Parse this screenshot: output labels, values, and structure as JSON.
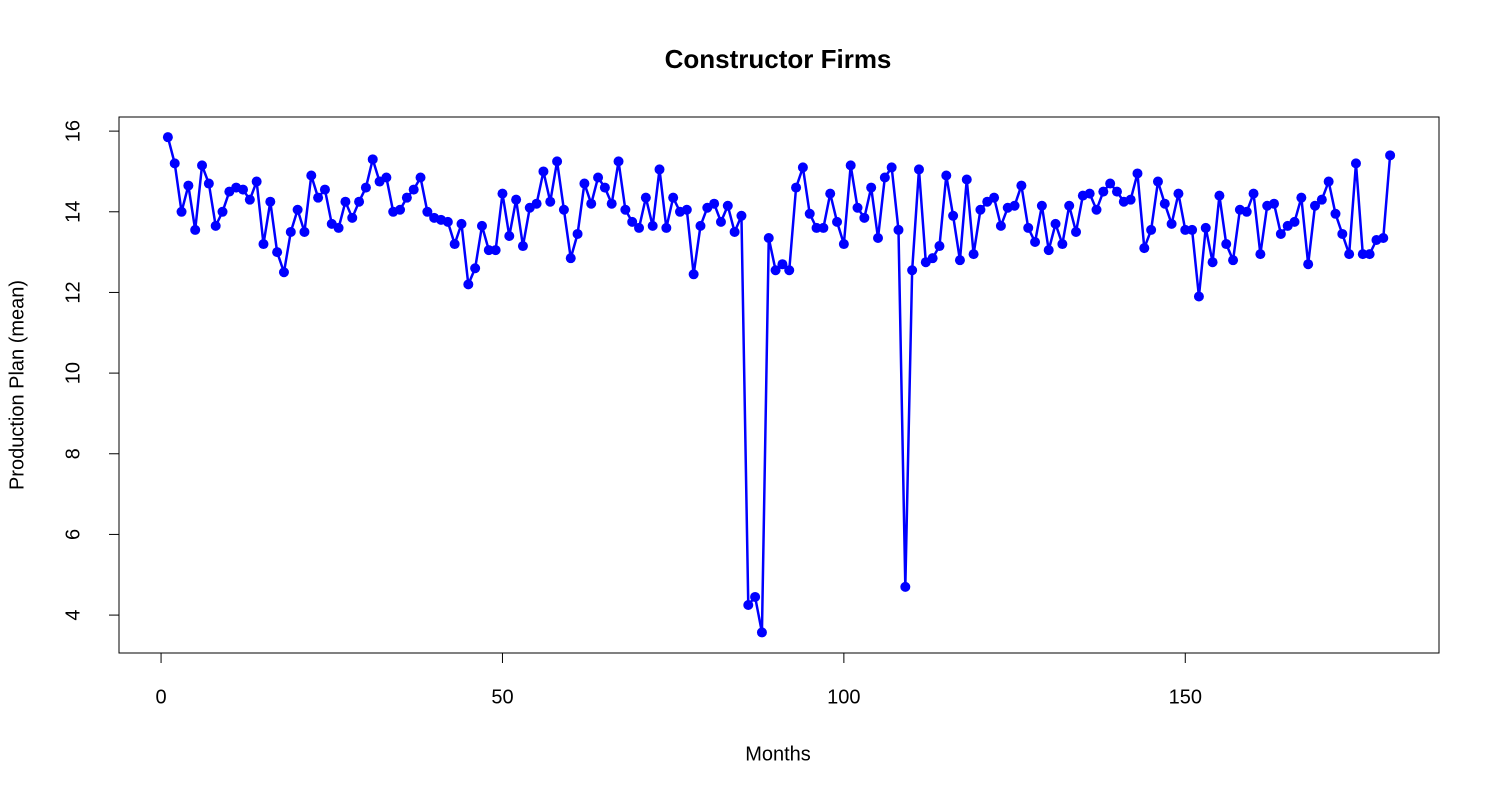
{
  "chart_data": {
    "type": "line",
    "title": "Constructor Firms",
    "x_label": "Months",
    "y_label": "Production Plan (mean)",
    "x": [
      1,
      2,
      3,
      4,
      5,
      6,
      7,
      8,
      9,
      10,
      11,
      12,
      13,
      14,
      15,
      16,
      17,
      18,
      19,
      20,
      21,
      22,
      23,
      24,
      25,
      26,
      27,
      28,
      29,
      30,
      31,
      32,
      33,
      34,
      35,
      36,
      37,
      38,
      39,
      40,
      41,
      42,
      43,
      44,
      45,
      46,
      47,
      48,
      49,
      50,
      51,
      52,
      53,
      54,
      55,
      56,
      57,
      58,
      59,
      60,
      61,
      62,
      63,
      64,
      65,
      66,
      67,
      68,
      69,
      70,
      71,
      72,
      73,
      74,
      75,
      76,
      77,
      78,
      79,
      80,
      81,
      82,
      83,
      84,
      85,
      86,
      87,
      88,
      89,
      90,
      91,
      92,
      93,
      94,
      95,
      96,
      97,
      98,
      99,
      100,
      101,
      102,
      103,
      104,
      105,
      106,
      107,
      108,
      109,
      110,
      111,
      112,
      113,
      114,
      115,
      116,
      117,
      118,
      119,
      120,
      121,
      122,
      123,
      124,
      125,
      126,
      127,
      128,
      129,
      130,
      131,
      132,
      133,
      134,
      135,
      136,
      137,
      138,
      139,
      140,
      141,
      142,
      143,
      144,
      145,
      146,
      147,
      148,
      149,
      150,
      151,
      152,
      153,
      154,
      155,
      156,
      157,
      158,
      159,
      160,
      161,
      162,
      163,
      164,
      165,
      166,
      167,
      168,
      169,
      170,
      171,
      172,
      173,
      174,
      175,
      176,
      177,
      178,
      179,
      180
    ],
    "series": [
      {
        "name": "Production Plan (mean)",
        "color": "#0000ff",
        "values": [
          15.85,
          15.2,
          14.0,
          14.65,
          13.55,
          15.15,
          14.7,
          13.65,
          14.0,
          14.5,
          14.6,
          14.55,
          14.3,
          14.75,
          13.2,
          14.25,
          13.0,
          12.5,
          13.5,
          14.05,
          13.5,
          14.9,
          14.35,
          14.55,
          13.7,
          13.6,
          14.25,
          13.85,
          14.25,
          14.6,
          15.3,
          14.75,
          14.85,
          14.0,
          14.05,
          14.35,
          14.55,
          14.85,
          14.0,
          13.85,
          13.8,
          13.75,
          13.2,
          13.7,
          12.2,
          12.6,
          13.65,
          13.05,
          13.05,
          14.45,
          13.4,
          14.3,
          13.15,
          14.1,
          14.2,
          15.0,
          14.25,
          15.25,
          14.05,
          12.85,
          13.45,
          14.7,
          14.2,
          14.85,
          14.6,
          14.2,
          15.25,
          14.05,
          13.75,
          13.6,
          14.35,
          13.65,
          15.05,
          13.6,
          14.35,
          14.0,
          14.05,
          12.45,
          13.65,
          14.1,
          14.2,
          13.75,
          14.15,
          13.5,
          13.9,
          4.25,
          4.45,
          3.57,
          13.35,
          12.55,
          12.7,
          12.55,
          14.6,
          15.1,
          13.95,
          13.6,
          13.6,
          14.45,
          13.75,
          13.2,
          15.15,
          14.1,
          13.85,
          14.6,
          13.35,
          14.85,
          15.1,
          13.55,
          4.7,
          12.55,
          15.05,
          12.75,
          12.85,
          13.15,
          14.9,
          13.9,
          12.8,
          14.8,
          12.95,
          14.05,
          14.25,
          14.35,
          13.65,
          14.1,
          14.15,
          14.65,
          13.6,
          13.25,
          14.15,
          13.05,
          13.7,
          13.2,
          14.15,
          13.5,
          14.4,
          14.45,
          14.05,
          14.5,
          14.7,
          14.5,
          14.25,
          14.3,
          14.95,
          13.1,
          13.55,
          14.75,
          14.2,
          13.7,
          14.45,
          13.55,
          13.55,
          11.9,
          13.6,
          12.75,
          14.4,
          13.2,
          12.8,
          14.05,
          14.0,
          14.45,
          12.95,
          14.15,
          14.2,
          13.45,
          13.65,
          13.75,
          14.35,
          12.7,
          14.15,
          14.3,
          14.75,
          13.95,
          13.45,
          12.95,
          15.2,
          12.95,
          12.95,
          13.3,
          13.35,
          15.4
        ]
      }
    ],
    "xlim": [
      -6.16,
      187.16
    ],
    "xticks": [
      0,
      50,
      100,
      150
    ],
    "ylim": [
      3.06,
      16.35
    ],
    "yticks": [
      4,
      6,
      8,
      10,
      12,
      14,
      16
    ],
    "grid": false
  }
}
